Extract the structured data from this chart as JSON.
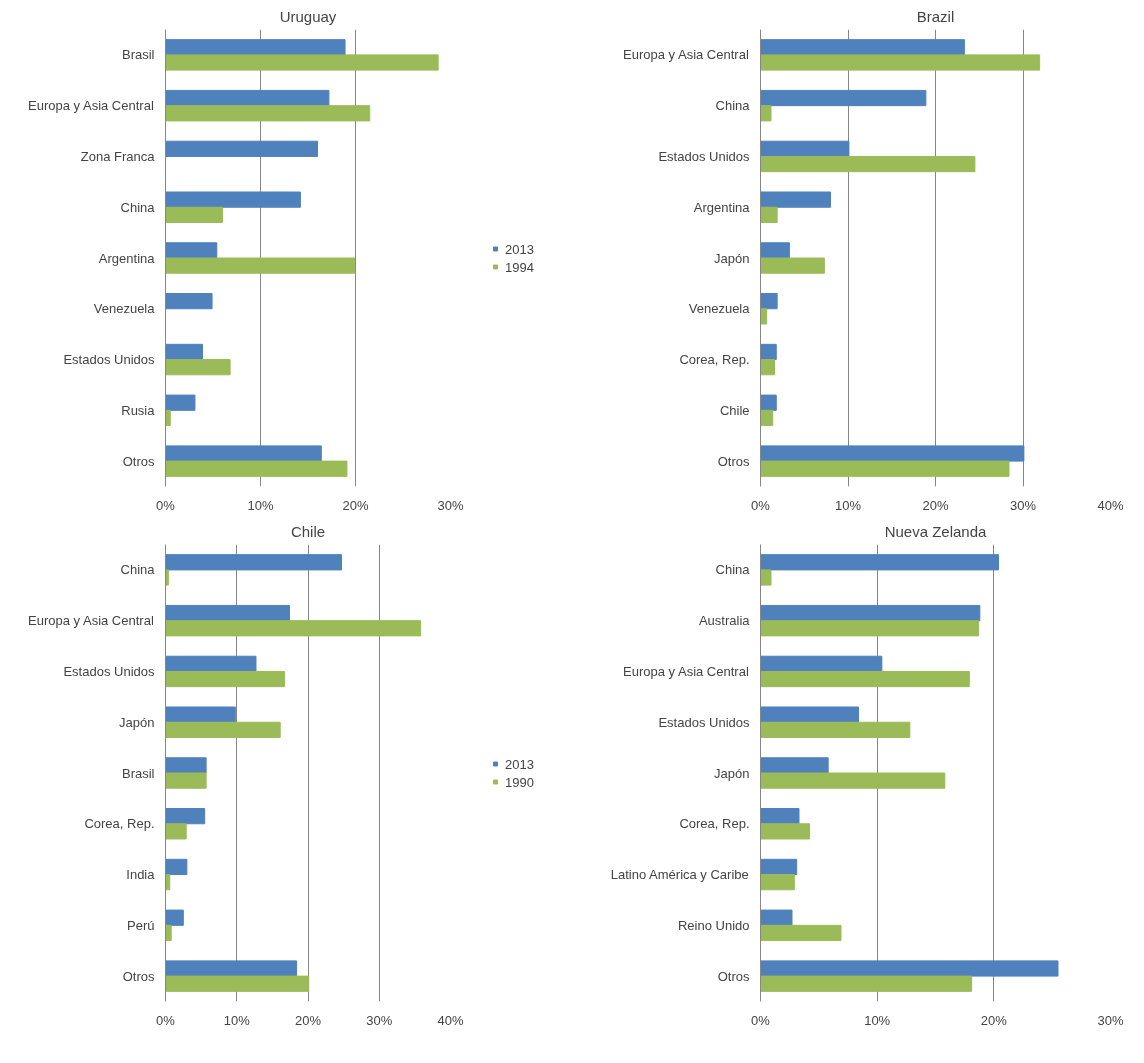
{
  "chart_data": [
    {
      "type": "bar",
      "orientation": "horizontal",
      "title": "Uruguay",
      "categories": [
        "Brasil",
        "Europa y Asia Central",
        "Zona Franca",
        "China",
        "Argentina",
        "Venezuela",
        "Estados Unidos",
        "Rusia",
        "Otros"
      ],
      "series": [
        {
          "name": "2013",
          "color": "#4f81bd",
          "values": [
            18.9,
            17.2,
            16.0,
            14.2,
            5.4,
            4.9,
            3.9,
            3.1,
            16.4
          ]
        },
        {
          "name": "1994",
          "color": "#9bbb59",
          "values": [
            28.7,
            21.5,
            null,
            6.0,
            19.9,
            null,
            6.8,
            0.5,
            19.1
          ]
        }
      ],
      "xlim": [
        0,
        30
      ],
      "xticks": [
        {
          "value": 0,
          "label": "0%"
        },
        {
          "value": 10,
          "label": "10%"
        },
        {
          "value": 20,
          "label": "20%"
        },
        {
          "value": 30,
          "label": "30%"
        }
      ],
      "grid": "x",
      "legend": "right"
    },
    {
      "type": "bar",
      "orientation": "horizontal",
      "title": "Brazil",
      "categories": [
        "Europa y Asia Central",
        "China",
        "Estados Unidos",
        "Argentina",
        "Japón",
        "Venezuela",
        "Corea, Rep.",
        "Chile",
        "Otros"
      ],
      "series": [
        {
          "color": "#4f81bd",
          "values": [
            23.3,
            18.9,
            10.1,
            8.0,
            3.3,
            1.9,
            1.8,
            1.8,
            30.1
          ]
        },
        {
          "color": "#9bbb59",
          "values": [
            31.9,
            1.2,
            24.5,
            1.9,
            7.3,
            0.7,
            1.6,
            1.4,
            28.4
          ]
        }
      ],
      "xlim": [
        0,
        40
      ],
      "xticks": [
        {
          "value": 0,
          "label": "0%"
        },
        {
          "value": 10,
          "label": "10%"
        },
        {
          "value": 20,
          "label": "20%"
        },
        {
          "value": 30,
          "label": "30%"
        },
        {
          "value": 40,
          "label": "40%"
        }
      ],
      "grid": "x"
    },
    {
      "type": "bar",
      "orientation": "horizontal",
      "title": "Chile",
      "categories": [
        "China",
        "Europa y Asia Central",
        "Estados Unidos",
        "Japón",
        "Brasil",
        "Corea, Rep.",
        "India",
        "Perú",
        "Otros"
      ],
      "series": [
        {
          "name": "2013",
          "color": "#4f81bd",
          "values": [
            24.7,
            17.4,
            12.7,
            9.8,
            5.7,
            5.5,
            3.0,
            2.5,
            18.4
          ]
        },
        {
          "name": "1990",
          "color": "#9bbb59",
          "values": [
            0.4,
            35.8,
            16.7,
            16.1,
            5.7,
            2.9,
            0.6,
            0.8,
            20.1
          ]
        }
      ],
      "xlim": [
        0,
        40
      ],
      "xticks": [
        {
          "value": 0,
          "label": "0%"
        },
        {
          "value": 10,
          "label": "10%"
        },
        {
          "value": 20,
          "label": "20%"
        },
        {
          "value": 30,
          "label": "30%"
        },
        {
          "value": 40,
          "label": "40%"
        }
      ],
      "grid": "x",
      "legend": "right"
    },
    {
      "type": "bar",
      "orientation": "horizontal",
      "title": "Nueva Zelanda",
      "categories": [
        "China",
        "Australia",
        "Europa y Asia Central",
        "Estados Unidos",
        "Japón",
        "Corea, Rep.",
        "Latino América y Caribe",
        "Reino Unido",
        "Otros"
      ],
      "series": [
        {
          "color": "#4f81bd",
          "values": [
            20.4,
            18.8,
            10.4,
            8.4,
            5.8,
            3.3,
            3.1,
            2.7,
            25.5
          ]
        },
        {
          "color": "#9bbb59",
          "values": [
            0.9,
            18.7,
            17.9,
            12.8,
            15.8,
            4.2,
            2.9,
            6.9,
            18.1
          ]
        }
      ],
      "xlim": [
        0,
        30
      ],
      "xticks": [
        {
          "value": 0,
          "label": "0%"
        },
        {
          "value": 10,
          "label": "10%"
        },
        {
          "value": 20,
          "label": "20%"
        },
        {
          "value": 30,
          "label": "30%"
        }
      ],
      "grid": "x"
    }
  ]
}
